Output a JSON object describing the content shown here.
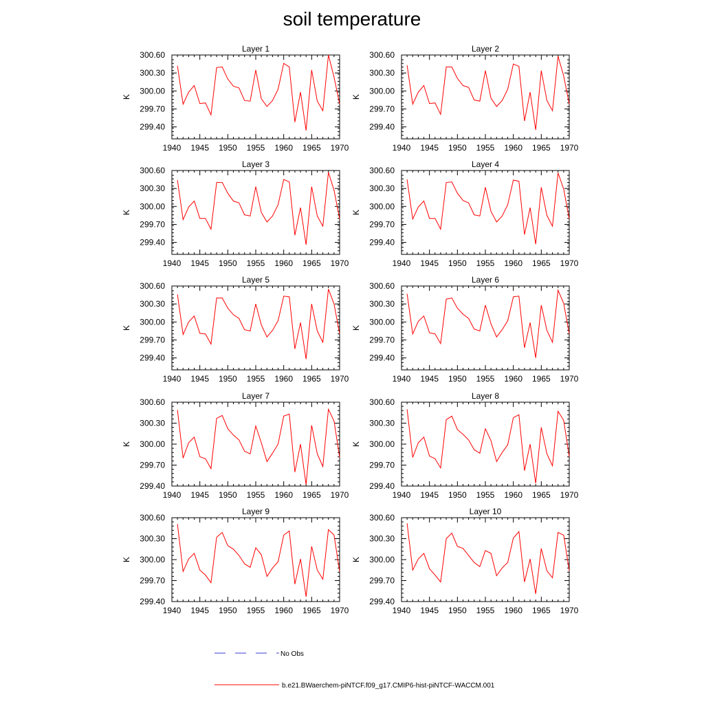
{
  "figure": {
    "title": "soil temperature",
    "legend": [
      {
        "label": "No Obs",
        "color": "#3b3bd6",
        "style": "dashed"
      },
      {
        "label": "b.e21.BWaerchem-piNTCF.f09_g17.CMIP6-hist-piNTCF-WACCM.001",
        "color": "#ff0000",
        "style": "solid"
      }
    ]
  },
  "chart_data": [
    {
      "type": "line",
      "title": "Layer 1",
      "ylabel": "K",
      "xlim": [
        1940,
        1970
      ],
      "ylim": [
        299.2,
        300.6
      ],
      "xticks": [
        1940,
        1945,
        1950,
        1955,
        1960,
        1965,
        1970
      ],
      "yticks": [
        "300.60",
        "300.30",
        "300.00",
        "299.70",
        "299.40"
      ],
      "x": [
        1941,
        1942,
        1943,
        1944,
        1945,
        1946,
        1947,
        1948,
        1949,
        1950,
        1951,
        1952,
        1953,
        1954,
        1955,
        1956,
        1957,
        1958,
        1959,
        1960,
        1961,
        1962,
        1963,
        1964,
        1965,
        1966,
        1967,
        1968,
        1969,
        1970
      ],
      "series": [
        {
          "name": "b.e21.BWaerchem-piNTCF.f09_g17.CMIP6-hist-piNTCF-WACCM.001",
          "color": "#ff0000",
          "values": [
            300.42,
            299.78,
            299.98,
            300.09,
            299.79,
            299.8,
            299.6,
            300.39,
            300.4,
            300.2,
            300.08,
            300.05,
            299.84,
            299.83,
            300.35,
            299.87,
            299.74,
            299.84,
            300.03,
            300.46,
            300.4,
            299.48,
            299.98,
            299.34,
            300.35,
            299.83,
            299.67,
            300.6,
            300.23,
            299.78
          ]
        }
      ]
    },
    {
      "type": "line",
      "title": "Layer 2",
      "ylabel": "K",
      "xlim": [
        1940,
        1970
      ],
      "ylim": [
        299.2,
        300.6
      ],
      "xticks": [
        1940,
        1945,
        1950,
        1955,
        1960,
        1965,
        1970
      ],
      "yticks": [
        "300.60",
        "300.30",
        "300.00",
        "299.70",
        "299.40"
      ],
      "x": [
        1941,
        1942,
        1943,
        1944,
        1945,
        1946,
        1947,
        1948,
        1949,
        1950,
        1951,
        1952,
        1953,
        1954,
        1955,
        1956,
        1957,
        1958,
        1959,
        1960,
        1961,
        1962,
        1963,
        1964,
        1965,
        1966,
        1967,
        1968,
        1969,
        1970
      ],
      "series": [
        {
          "name": "b.e21.BWaerchem-piNTCF.f09_g17.CMIP6-hist-piNTCF-WACCM.001",
          "color": "#ff0000",
          "values": [
            300.43,
            299.78,
            299.98,
            300.09,
            299.79,
            299.8,
            299.61,
            300.4,
            300.4,
            300.21,
            300.09,
            300.06,
            299.85,
            299.83,
            300.34,
            299.88,
            299.74,
            299.84,
            300.03,
            300.45,
            300.41,
            299.5,
            299.98,
            299.35,
            300.34,
            299.84,
            299.67,
            300.58,
            300.25,
            299.78
          ]
        }
      ]
    },
    {
      "type": "line",
      "title": "Layer 3",
      "ylabel": "K",
      "xlim": [
        1940,
        1970
      ],
      "ylim": [
        299.2,
        300.6
      ],
      "xticks": [
        1940,
        1945,
        1950,
        1955,
        1960,
        1965,
        1970
      ],
      "yticks": [
        "300.60",
        "300.30",
        "300.00",
        "299.70",
        "299.40"
      ],
      "x": [
        1941,
        1942,
        1943,
        1944,
        1945,
        1946,
        1947,
        1948,
        1949,
        1950,
        1951,
        1952,
        1953,
        1954,
        1955,
        1956,
        1957,
        1958,
        1959,
        1960,
        1961,
        1962,
        1963,
        1964,
        1965,
        1966,
        1967,
        1968,
        1969,
        1970
      ],
      "series": [
        {
          "name": "b.e21.BWaerchem-piNTCF.f09_g17.CMIP6-hist-piNTCF-WACCM.001",
          "color": "#ff0000",
          "values": [
            300.44,
            299.78,
            299.99,
            300.09,
            299.8,
            299.8,
            299.62,
            300.4,
            300.4,
            300.22,
            300.09,
            300.06,
            299.86,
            299.84,
            300.33,
            299.9,
            299.74,
            299.84,
            300.03,
            300.45,
            300.41,
            299.52,
            299.98,
            299.36,
            300.33,
            299.84,
            299.67,
            300.57,
            300.27,
            299.79
          ]
        }
      ]
    },
    {
      "type": "line",
      "title": "Layer 4",
      "ylabel": "K",
      "xlim": [
        1940,
        1970
      ],
      "ylim": [
        299.2,
        300.6
      ],
      "xticks": [
        1940,
        1945,
        1950,
        1955,
        1960,
        1965,
        1970
      ],
      "yticks": [
        "300.60",
        "300.30",
        "300.00",
        "299.70",
        "299.40"
      ],
      "x": [
        1941,
        1942,
        1943,
        1944,
        1945,
        1946,
        1947,
        1948,
        1949,
        1950,
        1951,
        1952,
        1953,
        1954,
        1955,
        1956,
        1957,
        1958,
        1959,
        1960,
        1961,
        1962,
        1963,
        1964,
        1965,
        1966,
        1967,
        1968,
        1969,
        1970
      ],
      "series": [
        {
          "name": "b.e21.BWaerchem-piNTCF.f09_g17.CMIP6-hist-piNTCF-WACCM.001",
          "color": "#ff0000",
          "values": [
            300.45,
            299.79,
            299.99,
            300.09,
            299.8,
            299.8,
            299.62,
            300.4,
            300.41,
            300.22,
            300.1,
            300.06,
            299.86,
            299.84,
            300.32,
            299.92,
            299.74,
            299.84,
            300.03,
            300.44,
            300.42,
            299.53,
            299.98,
            299.37,
            300.32,
            299.85,
            299.67,
            300.56,
            300.29,
            299.79
          ]
        }
      ]
    },
    {
      "type": "line",
      "title": "Layer 5",
      "ylabel": "K",
      "xlim": [
        1940,
        1970
      ],
      "ylim": [
        299.2,
        300.6
      ],
      "xticks": [
        1940,
        1945,
        1950,
        1955,
        1960,
        1965,
        1970
      ],
      "yticks": [
        "300.60",
        "300.30",
        "300.00",
        "299.70",
        "299.40"
      ],
      "x": [
        1941,
        1942,
        1943,
        1944,
        1945,
        1946,
        1947,
        1948,
        1949,
        1950,
        1951,
        1952,
        1953,
        1954,
        1955,
        1956,
        1957,
        1958,
        1959,
        1960,
        1961,
        1962,
        1963,
        1964,
        1965,
        1966,
        1967,
        1968,
        1969,
        1970
      ],
      "series": [
        {
          "name": "b.e21.BWaerchem-piNTCF.f09_g17.CMIP6-hist-piNTCF-WACCM.001",
          "color": "#ff0000",
          "values": [
            300.46,
            299.79,
            300.0,
            300.1,
            299.81,
            299.8,
            299.63,
            300.4,
            300.4,
            300.23,
            300.12,
            300.06,
            299.87,
            299.85,
            300.3,
            299.95,
            299.75,
            299.86,
            300.02,
            300.43,
            300.42,
            299.55,
            299.99,
            299.38,
            300.3,
            299.85,
            299.66,
            300.55,
            300.3,
            299.8
          ]
        }
      ]
    },
    {
      "type": "line",
      "title": "Layer 6",
      "ylabel": "K",
      "xlim": [
        1940,
        1970
      ],
      "ylim": [
        299.2,
        300.6
      ],
      "xticks": [
        1940,
        1945,
        1950,
        1955,
        1960,
        1965,
        1970
      ],
      "yticks": [
        "300.60",
        "300.30",
        "300.00",
        "299.70",
        "299.40"
      ],
      "x": [
        1941,
        1942,
        1943,
        1944,
        1945,
        1946,
        1947,
        1948,
        1949,
        1950,
        1951,
        1952,
        1953,
        1954,
        1955,
        1956,
        1957,
        1958,
        1959,
        1960,
        1961,
        1962,
        1963,
        1964,
        1965,
        1966,
        1967,
        1968,
        1969,
        1970
      ],
      "series": [
        {
          "name": "b.e21.BWaerchem-piNTCF.f09_g17.CMIP6-hist-piNTCF-WACCM.001",
          "color": "#ff0000",
          "values": [
            300.47,
            299.8,
            300.01,
            300.1,
            299.82,
            299.8,
            299.64,
            300.38,
            300.4,
            300.23,
            300.13,
            300.06,
            299.88,
            299.85,
            300.28,
            299.97,
            299.75,
            299.87,
            300.02,
            300.42,
            300.43,
            299.57,
            299.99,
            299.4,
            300.28,
            299.86,
            299.66,
            300.53,
            300.31,
            299.8
          ]
        }
      ]
    },
    {
      "type": "line",
      "title": "Layer 7",
      "ylabel": "K",
      "xlim": [
        1940,
        1970
      ],
      "ylim": [
        299.4,
        300.6
      ],
      "xticks": [
        1940,
        1945,
        1950,
        1955,
        1960,
        1965,
        1970
      ],
      "yticks": [
        "300.60",
        "300.30",
        "300.00",
        "299.70",
        "299.40"
      ],
      "x": [
        1941,
        1942,
        1943,
        1944,
        1945,
        1946,
        1947,
        1948,
        1949,
        1950,
        1951,
        1952,
        1953,
        1954,
        1955,
        1956,
        1957,
        1958,
        1959,
        1960,
        1961,
        1962,
        1963,
        1964,
        1965,
        1966,
        1967,
        1968,
        1969,
        1970
      ],
      "series": [
        {
          "name": "b.e21.BWaerchem-piNTCF.f09_g17.CMIP6-hist-piNTCF-WACCM.001",
          "color": "#ff0000",
          "values": [
            300.49,
            299.8,
            300.02,
            300.1,
            299.82,
            299.79,
            299.65,
            300.37,
            300.41,
            300.22,
            300.13,
            300.06,
            299.9,
            299.86,
            300.26,
            300.02,
            299.75,
            299.87,
            300.0,
            300.4,
            300.43,
            299.6,
            300.0,
            299.42,
            300.27,
            299.86,
            299.68,
            300.5,
            300.33,
            299.81
          ]
        }
      ]
    },
    {
      "type": "line",
      "title": "Layer 8",
      "ylabel": "K",
      "xlim": [
        1940,
        1970
      ],
      "ylim": [
        299.4,
        300.6
      ],
      "xticks": [
        1940,
        1945,
        1950,
        1955,
        1960,
        1965,
        1970
      ],
      "yticks": [
        "300.60",
        "300.30",
        "300.00",
        "299.70",
        "299.40"
      ],
      "x": [
        1941,
        1942,
        1943,
        1944,
        1945,
        1946,
        1947,
        1948,
        1949,
        1950,
        1951,
        1952,
        1953,
        1954,
        1955,
        1956,
        1957,
        1958,
        1959,
        1960,
        1961,
        1962,
        1963,
        1964,
        1965,
        1966,
        1967,
        1968,
        1969,
        1970
      ],
      "series": [
        {
          "name": "b.e21.BWaerchem-piNTCF.f09_g17.CMIP6-hist-piNTCF-WACCM.001",
          "color": "#ff0000",
          "values": [
            300.5,
            299.81,
            300.02,
            300.1,
            299.83,
            299.79,
            299.66,
            300.35,
            300.4,
            300.21,
            300.14,
            300.06,
            299.92,
            299.87,
            300.22,
            300.05,
            299.75,
            299.88,
            299.99,
            300.38,
            300.42,
            299.62,
            300.0,
            299.44,
            300.24,
            299.86,
            299.69,
            300.47,
            300.34,
            299.82
          ]
        }
      ]
    },
    {
      "type": "line",
      "title": "Layer 9",
      "ylabel": "K",
      "xlim": [
        1940,
        1970
      ],
      "ylim": [
        299.4,
        300.6
      ],
      "xticks": [
        1940,
        1945,
        1950,
        1955,
        1960,
        1965,
        1970
      ],
      "yticks": [
        "300.60",
        "300.30",
        "300.00",
        "299.70",
        "299.40"
      ],
      "x": [
        1941,
        1942,
        1943,
        1944,
        1945,
        1946,
        1947,
        1948,
        1949,
        1950,
        1951,
        1952,
        1953,
        1954,
        1955,
        1956,
        1957,
        1958,
        1959,
        1960,
        1961,
        1962,
        1963,
        1964,
        1965,
        1966,
        1967,
        1968,
        1969,
        1970
      ],
      "series": [
        {
          "name": "b.e21.BWaerchem-piNTCF.f09_g17.CMIP6-hist-piNTCF-WACCM.001",
          "color": "#ff0000",
          "values": [
            300.51,
            299.83,
            300.01,
            300.09,
            299.85,
            299.78,
            299.67,
            300.32,
            300.39,
            300.2,
            300.15,
            300.06,
            299.94,
            299.89,
            300.17,
            300.07,
            299.76,
            299.88,
            299.97,
            300.35,
            300.41,
            299.65,
            300.01,
            299.47,
            300.19,
            299.85,
            299.72,
            300.43,
            300.35,
            299.83
          ]
        }
      ]
    },
    {
      "type": "line",
      "title": "Layer 10",
      "ylabel": "K",
      "xlim": [
        1940,
        1970
      ],
      "ylim": [
        299.4,
        300.6
      ],
      "xticks": [
        1940,
        1945,
        1950,
        1955,
        1960,
        1965,
        1970
      ],
      "yticks": [
        "300.60",
        "300.30",
        "300.00",
        "299.70",
        "299.40"
      ],
      "x": [
        1941,
        1942,
        1943,
        1944,
        1945,
        1946,
        1947,
        1948,
        1949,
        1950,
        1951,
        1952,
        1953,
        1954,
        1955,
        1956,
        1957,
        1958,
        1959,
        1960,
        1961,
        1962,
        1963,
        1964,
        1965,
        1966,
        1967,
        1968,
        1969,
        1970
      ],
      "series": [
        {
          "name": "b.e21.BWaerchem-piNTCF.f09_g17.CMIP6-hist-piNTCF-WACCM.001",
          "color": "#ff0000",
          "values": [
            300.52,
            299.85,
            300.01,
            300.09,
            299.87,
            299.78,
            299.68,
            300.3,
            300.38,
            300.19,
            300.16,
            300.06,
            299.96,
            299.9,
            300.13,
            300.09,
            299.77,
            299.88,
            299.96,
            300.31,
            300.4,
            299.68,
            300.01,
            299.51,
            300.16,
            299.84,
            299.74,
            300.39,
            300.35,
            299.84
          ]
        }
      ]
    }
  ]
}
